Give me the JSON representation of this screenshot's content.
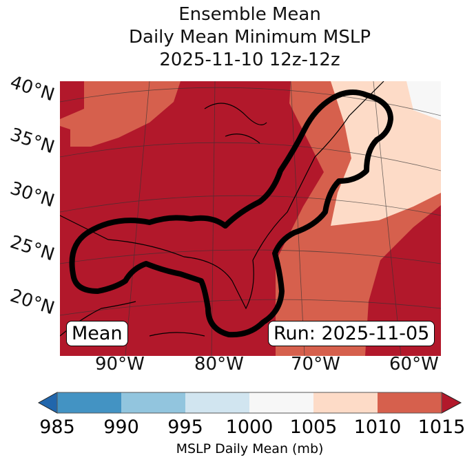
{
  "title": {
    "line1": "Ensemble Mean",
    "line2": "Daily Mean Minimum MSLP",
    "line3": "2025-11-10 12z-12z"
  },
  "map": {
    "lat_labels": [
      "40°N",
      "35°N",
      "30°N",
      "25°N",
      "20°N"
    ],
    "lon_labels": [
      "90°W",
      "80°W",
      "70°W",
      "60°W"
    ],
    "left_box": "Mean",
    "right_box": "Run: 2025-11-05"
  },
  "colorbar": {
    "label": "MSLP Daily Mean (mb)",
    "ticks": [
      "985",
      "990",
      "995",
      "1000",
      "1005",
      "1010",
      "1015"
    ],
    "colors": [
      "#2166ac",
      "#4393c3",
      "#92c5de",
      "#d1e5f0",
      "#f7f7f7",
      "#fddbc7",
      "#d6604d",
      "#b2182b"
    ]
  }
}
